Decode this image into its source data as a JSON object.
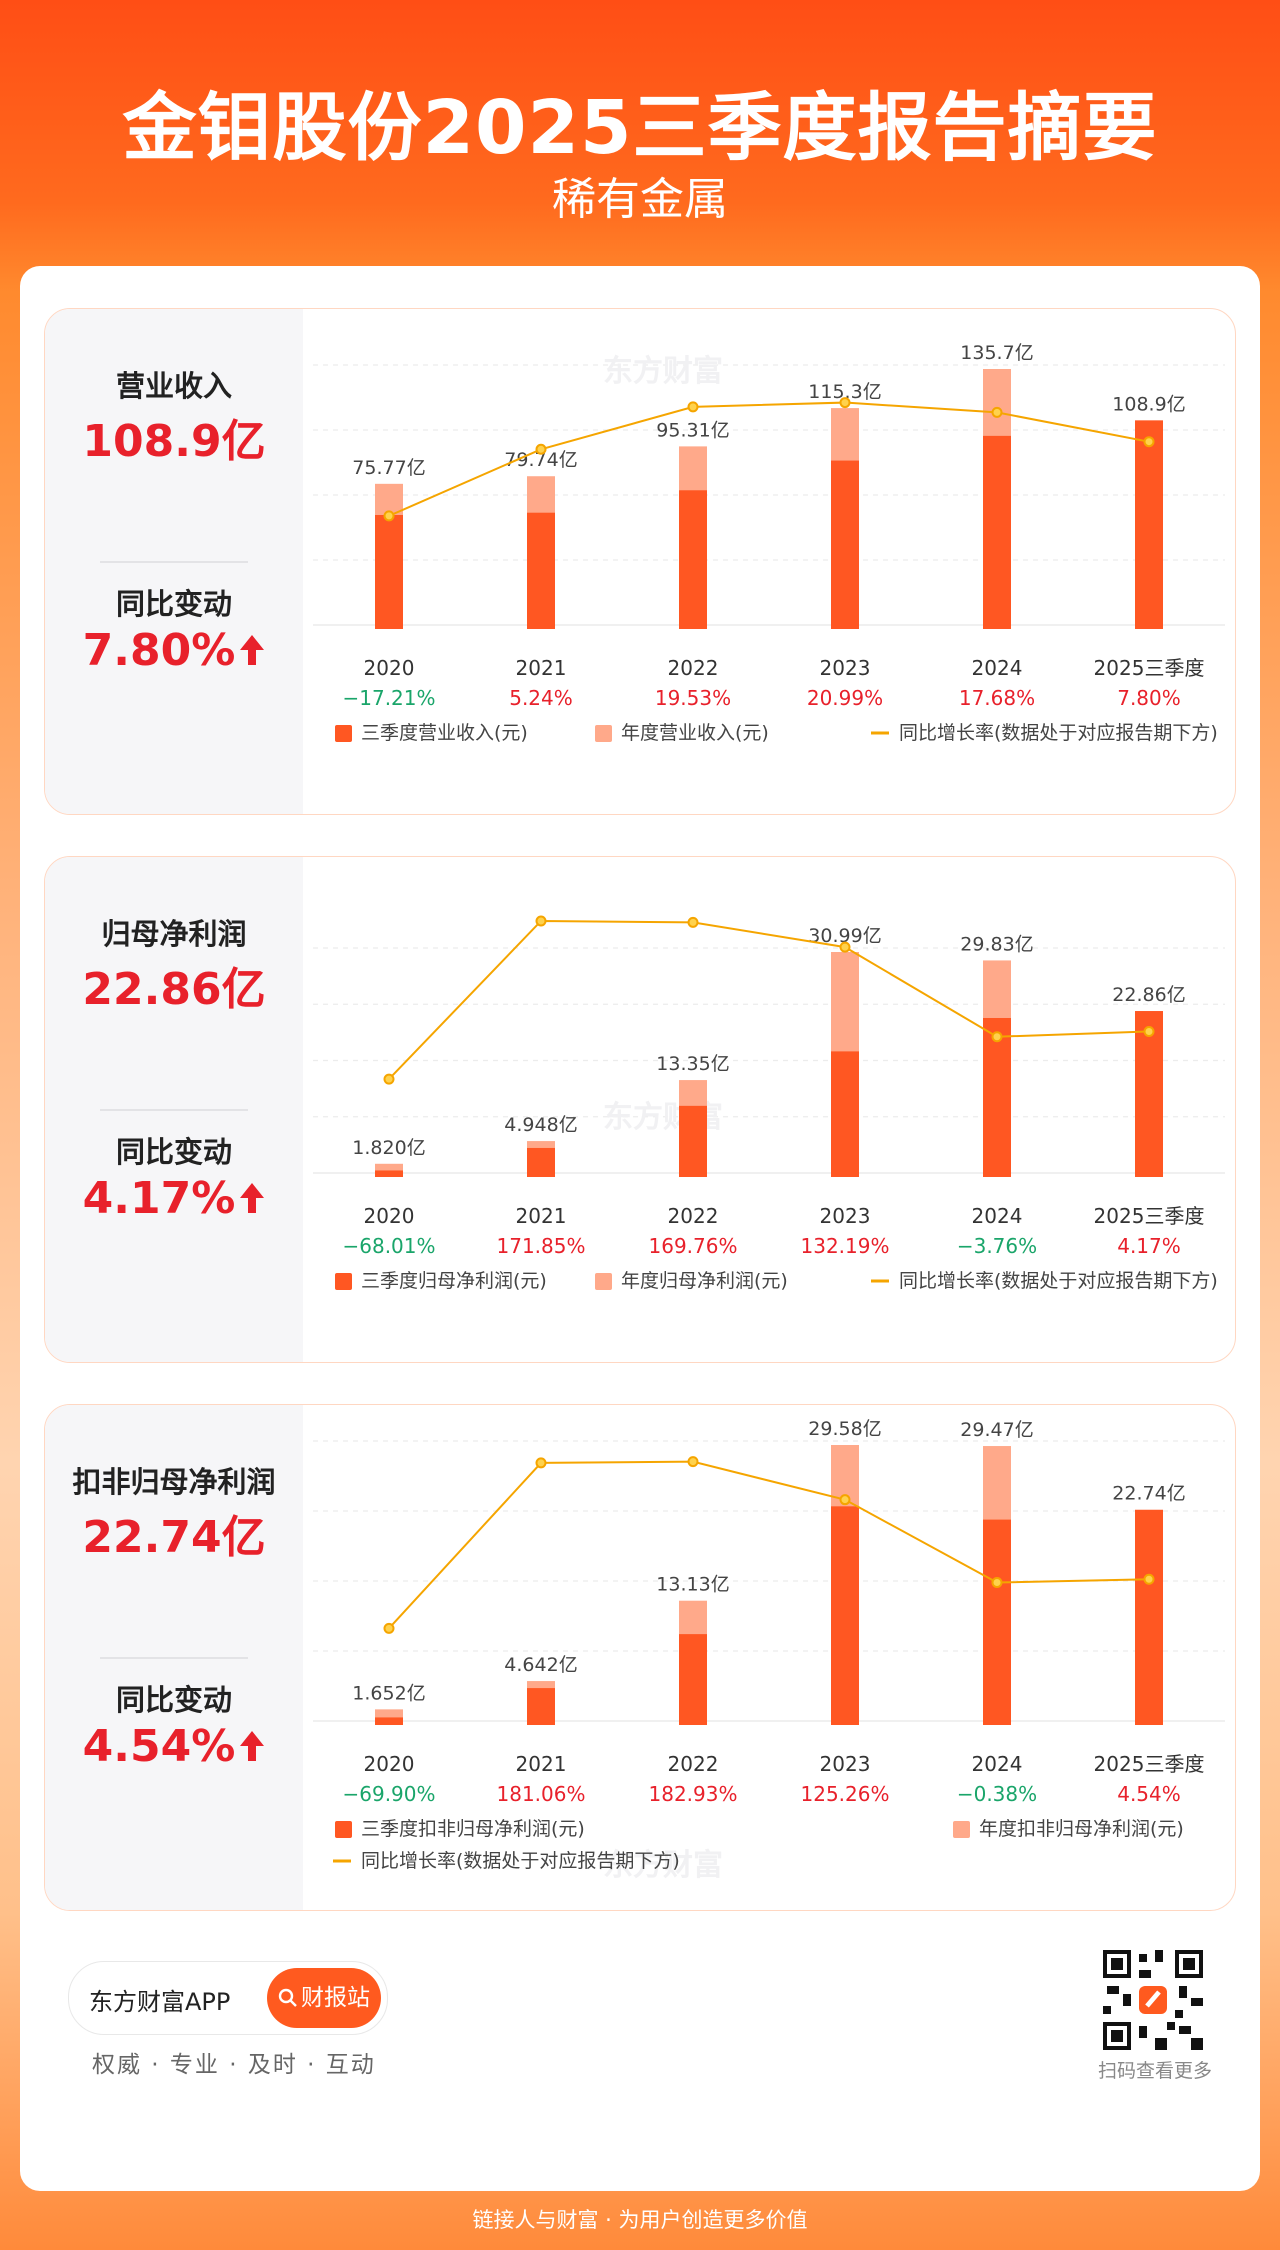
{
  "header": {
    "title": "金钼股份2025三季度报告摘要",
    "subtitle": "稀有金属"
  },
  "panels": [
    {
      "metric_label": "营业收入",
      "metric_value": "108.9亿",
      "change_label": "同比变动",
      "change_value": "7.80%",
      "legend": {
        "q3": "三季度营业收入(元)",
        "annual": "年度营业收入(元)",
        "growth": "同比增长率(数据处于对应报告期下方)"
      }
    },
    {
      "metric_label": "归母净利润",
      "metric_value": "22.86亿",
      "change_label": "同比变动",
      "change_value": "4.17%",
      "legend": {
        "q3": "三季度归母净利润(元)",
        "annual": "年度归母净利润(元)",
        "growth": "同比增长率(数据处于对应报告期下方)"
      }
    },
    {
      "metric_label": "扣非归母净利润",
      "metric_value": "22.74亿",
      "change_label": "同比变动",
      "change_value": "4.54%",
      "legend": {
        "q3": "三季度扣非归母净利润(元)",
        "annual": "年度扣非归母净利润(元)",
        "growth": "同比增长率(数据处于对应报告期下方)"
      }
    }
  ],
  "chart_data": [
    {
      "type": "bar",
      "title": "营业收入",
      "categories": [
        "2020",
        "2021",
        "2022",
        "2023",
        "2024",
        "2025三季度"
      ],
      "series": [
        {
          "name": "三季度营业收入(元)",
          "values": [
            59.5,
            60.7,
            72.4,
            87.9,
            100.8,
            108.9
          ],
          "unit": "亿"
        },
        {
          "name": "年度营业收入(元)",
          "values": [
            75.77,
            79.74,
            95.31,
            115.3,
            135.7,
            null
          ],
          "unit": "亿"
        },
        {
          "name": "同比增长率",
          "values": [
            -17.21,
            5.24,
            19.53,
            20.99,
            17.68,
            7.8
          ],
          "unit": "%"
        }
      ],
      "bar_labels": [
        "75.77亿",
        "79.74亿",
        "95.31亿",
        "115.3亿",
        "135.7亿",
        "108.9亿"
      ],
      "growth_labels": [
        "−17.21%",
        "5.24%",
        "19.53%",
        "20.99%",
        "17.68%",
        "7.80%"
      ],
      "watermark": "东方财富"
    },
    {
      "type": "bar",
      "title": "归母净利润",
      "categories": [
        "2020",
        "2021",
        "2022",
        "2023",
        "2024",
        "2025三季度"
      ],
      "series": [
        {
          "name": "三季度归母净利润(元)",
          "values": [
            0.9,
            4.0,
            9.8,
            17.3,
            21.9,
            22.86
          ],
          "unit": "亿"
        },
        {
          "name": "年度归母净利润(元)",
          "values": [
            1.82,
            4.948,
            13.35,
            30.99,
            29.83,
            null
          ],
          "unit": "亿"
        },
        {
          "name": "同比增长率",
          "values": [
            -68.01,
            171.85,
            169.76,
            132.19,
            -3.76,
            4.17
          ],
          "unit": "%"
        }
      ],
      "bar_labels": [
        "1.820亿",
        "4.948亿",
        "13.35亿",
        "30.99亿",
        "29.83亿",
        "22.86亿"
      ],
      "growth_labels": [
        "−68.01%",
        "171.85%",
        "169.76%",
        "132.19%",
        "−3.76%",
        "4.17%"
      ],
      "watermark": "东方财富"
    },
    {
      "type": "bar",
      "title": "扣非归母净利润",
      "categories": [
        "2020",
        "2021",
        "2022",
        "2023",
        "2024",
        "2025三季度"
      ],
      "series": [
        {
          "name": "三季度扣非归母净利润(元)",
          "values": [
            0.8,
            3.9,
            9.6,
            23.1,
            21.7,
            22.74
          ],
          "unit": "亿"
        },
        {
          "name": "年度扣非归母净利润(元)",
          "values": [
            1.652,
            4.642,
            13.13,
            29.58,
            29.47,
            null
          ],
          "unit": "亿"
        },
        {
          "name": "同比增长率",
          "values": [
            -69.9,
            181.06,
            182.93,
            125.26,
            -0.38,
            4.54
          ],
          "unit": "%"
        }
      ],
      "bar_labels": [
        "1.652亿",
        "4.642亿",
        "13.13亿",
        "29.58亿",
        "29.47亿",
        "22.74亿"
      ],
      "growth_labels": [
        "−69.90%",
        "181.06%",
        "182.93%",
        "125.26%",
        "−0.38%",
        "4.54%"
      ],
      "watermark": "东方财富"
    }
  ],
  "footer": {
    "app_name": "东方财富APP",
    "button_label": "财报站",
    "tagline": "权威 · 专业 · 及时 · 互动",
    "qr_caption": "扫码查看更多",
    "bottom_line": "链接人与财富 · 为用户创造更多价值"
  },
  "colors": {
    "q3_bar": "#ff5722",
    "annual_bar": "#ffa98a",
    "growth_line": "#f5a500",
    "positive": "#e8212b",
    "negative": "#1aa56a"
  }
}
